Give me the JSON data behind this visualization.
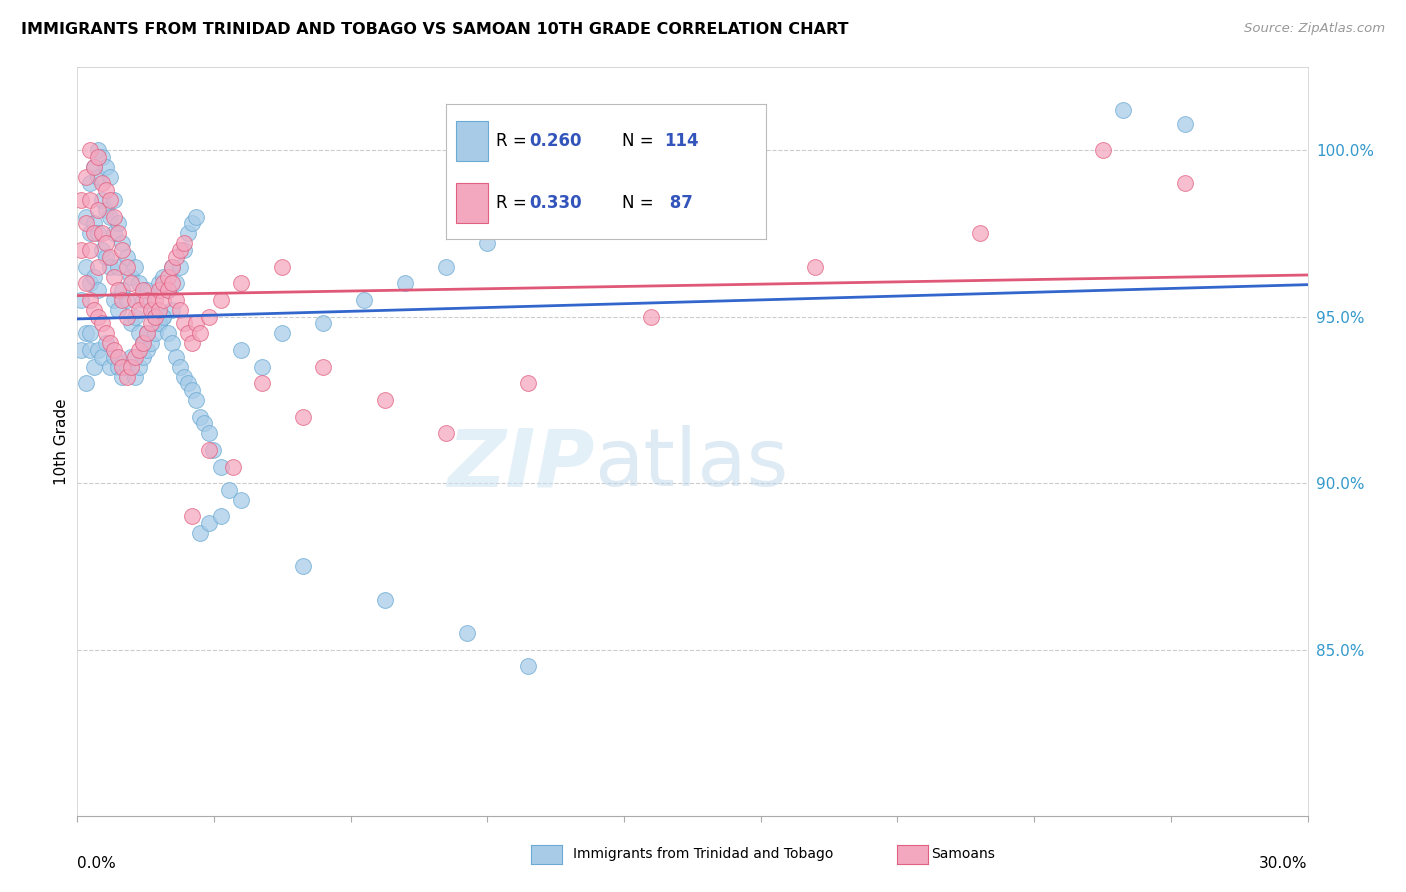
{
  "title": "IMMIGRANTS FROM TRINIDAD AND TOBAGO VS SAMOAN 10TH GRADE CORRELATION CHART",
  "source": "Source: ZipAtlas.com",
  "ylabel": "10th Grade",
  "xmin": 0.0,
  "xmax": 30.0,
  "ymin": 80.0,
  "ymax": 102.5,
  "yticks": [
    85.0,
    90.0,
    95.0,
    100.0
  ],
  "ytick_labels": [
    "85.0%",
    "90.0%",
    "95.0%",
    "100.0%"
  ],
  "series1_color": "#a8cce8",
  "series1_edge": "#6aaad4",
  "series1_line": "#3366cc",
  "series1_label": "Immigrants from Trinidad and Tobago",
  "series1_R": 0.26,
  "series1_N": 114,
  "series2_color": "#f4a8c0",
  "series2_edge": "#e06080",
  "series2_line": "#e05878",
  "series2_label": "Samoans",
  "series2_R": 0.33,
  "series2_N": 87,
  "legend_R_color": "#3355bb",
  "blue_scatter_x": [
    0.1,
    0.1,
    0.2,
    0.2,
    0.2,
    0.3,
    0.3,
    0.3,
    0.3,
    0.4,
    0.4,
    0.4,
    0.5,
    0.5,
    0.5,
    0.5,
    0.6,
    0.6,
    0.6,
    0.7,
    0.7,
    0.7,
    0.8,
    0.8,
    0.8,
    0.9,
    0.9,
    0.9,
    1.0,
    1.0,
    1.0,
    1.1,
    1.1,
    1.2,
    1.2,
    1.3,
    1.3,
    1.4,
    1.4,
    1.5,
    1.5,
    1.6,
    1.6,
    1.7,
    1.7,
    1.8,
    1.9,
    2.0,
    2.0,
    2.1,
    2.1,
    2.2,
    2.3,
    2.3,
    2.4,
    2.5,
    2.6,
    2.7,
    2.8,
    2.9,
    0.2,
    0.3,
    0.4,
    0.5,
    0.6,
    0.7,
    0.8,
    0.9,
    1.0,
    1.1,
    1.2,
    1.3,
    1.4,
    1.5,
    1.6,
    1.7,
    1.8,
    1.9,
    2.0,
    2.1,
    2.2,
    2.3,
    2.4,
    2.5,
    2.6,
    2.7,
    2.8,
    2.9,
    3.0,
    3.1,
    3.2,
    3.3,
    3.5,
    3.7,
    4.0,
    4.5,
    5.0,
    6.0,
    7.0,
    8.0,
    9.0,
    10.0,
    12.0,
    15.0,
    3.0,
    3.2,
    3.5,
    4.0,
    5.5,
    7.5,
    9.5,
    11.0,
    25.5,
    27.0
  ],
  "blue_scatter_y": [
    95.5,
    94.0,
    98.0,
    96.5,
    94.5,
    99.0,
    97.5,
    96.0,
    94.0,
    99.5,
    97.8,
    96.2,
    100.0,
    99.2,
    97.5,
    95.8,
    99.8,
    98.5,
    97.0,
    99.5,
    98.2,
    96.8,
    99.2,
    98.0,
    96.5,
    98.5,
    97.5,
    95.5,
    97.8,
    96.5,
    95.2,
    97.2,
    95.8,
    96.8,
    95.5,
    96.2,
    94.8,
    96.5,
    95.0,
    96.0,
    94.5,
    95.5,
    94.2,
    95.8,
    94.5,
    95.2,
    95.0,
    96.0,
    94.8,
    96.2,
    95.0,
    95.8,
    96.5,
    95.2,
    96.0,
    96.5,
    97.0,
    97.5,
    97.8,
    98.0,
    93.0,
    94.5,
    93.5,
    94.0,
    93.8,
    94.2,
    93.5,
    93.8,
    93.5,
    93.2,
    93.5,
    93.8,
    93.2,
    93.5,
    93.8,
    94.0,
    94.2,
    94.5,
    94.8,
    95.0,
    94.5,
    94.2,
    93.8,
    93.5,
    93.2,
    93.0,
    92.8,
    92.5,
    92.0,
    91.8,
    91.5,
    91.0,
    90.5,
    89.8,
    94.0,
    93.5,
    94.5,
    94.8,
    95.5,
    96.0,
    96.5,
    97.2,
    100.5,
    101.0,
    88.5,
    88.8,
    89.0,
    89.5,
    87.5,
    86.5,
    85.5,
    84.5,
    101.2,
    100.8
  ],
  "pink_scatter_x": [
    0.1,
    0.1,
    0.2,
    0.2,
    0.3,
    0.3,
    0.3,
    0.4,
    0.4,
    0.5,
    0.5,
    0.5,
    0.6,
    0.6,
    0.7,
    0.7,
    0.8,
    0.8,
    0.9,
    0.9,
    1.0,
    1.0,
    1.1,
    1.1,
    1.2,
    1.2,
    1.3,
    1.4,
    1.5,
    1.6,
    1.7,
    1.8,
    1.9,
    2.0,
    2.1,
    2.2,
    2.3,
    2.4,
    2.5,
    2.6,
    0.2,
    0.3,
    0.4,
    0.5,
    0.6,
    0.7,
    0.8,
    0.9,
    1.0,
    1.1,
    1.2,
    1.3,
    1.4,
    1.5,
    1.6,
    1.7,
    1.8,
    1.9,
    2.0,
    2.1,
    2.2,
    2.3,
    2.4,
    2.5,
    2.6,
    2.7,
    2.8,
    2.9,
    3.0,
    3.2,
    3.5,
    4.0,
    5.0,
    6.0,
    7.5,
    9.0,
    11.0,
    14.0,
    18.0,
    22.0,
    25.0,
    27.0,
    4.5,
    5.5,
    3.8,
    2.8,
    3.2
  ],
  "pink_scatter_y": [
    98.5,
    97.0,
    99.2,
    97.8,
    100.0,
    98.5,
    97.0,
    99.5,
    97.5,
    99.8,
    98.2,
    96.5,
    99.0,
    97.5,
    98.8,
    97.2,
    98.5,
    96.8,
    98.0,
    96.2,
    97.5,
    95.8,
    97.0,
    95.5,
    96.5,
    95.0,
    96.0,
    95.5,
    95.2,
    95.8,
    95.5,
    95.2,
    95.5,
    95.8,
    96.0,
    96.2,
    96.5,
    96.8,
    97.0,
    97.2,
    96.0,
    95.5,
    95.2,
    95.0,
    94.8,
    94.5,
    94.2,
    94.0,
    93.8,
    93.5,
    93.2,
    93.5,
    93.8,
    94.0,
    94.2,
    94.5,
    94.8,
    95.0,
    95.2,
    95.5,
    95.8,
    96.0,
    95.5,
    95.2,
    94.8,
    94.5,
    94.2,
    94.8,
    94.5,
    95.0,
    95.5,
    96.0,
    96.5,
    93.5,
    92.5,
    91.5,
    93.0,
    95.0,
    96.5,
    97.5,
    100.0,
    99.0,
    93.0,
    92.0,
    90.5,
    89.0,
    91.0
  ]
}
